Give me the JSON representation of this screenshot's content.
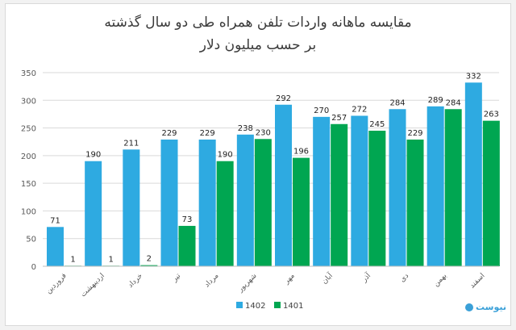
{
  "chart_data": {
    "type": "bar",
    "title": "مقایسه  ماهانه واردات تلفن همراه طی دو سال گذشته",
    "subtitle": "بر حسب میلیون دلار",
    "categories": [
      "فروردین",
      "اردیبهشت",
      "خرداد",
      "تیر",
      "مرداد",
      "شهریور",
      "مهر",
      "آبان",
      "آذر",
      "دی",
      "بهمن",
      "اسفند"
    ],
    "series": [
      {
        "name": "1402",
        "color": "#2eaae1",
        "values": [
          71,
          190,
          211,
          229,
          229,
          238,
          292,
          270,
          272,
          284,
          289,
          332
        ]
      },
      {
        "name": "1401",
        "color": "#00a651",
        "values": [
          1,
          1,
          2,
          73,
          190,
          230,
          196,
          257,
          245,
          229,
          284,
          263
        ]
      }
    ],
    "ylim": [
      0,
      350
    ],
    "yticks": [
      0,
      50,
      100,
      150,
      200,
      250,
      300,
      350
    ],
    "grid": true,
    "legend": "bottom",
    "data_labels": true
  },
  "watermark": {
    "text": "نیوست"
  }
}
